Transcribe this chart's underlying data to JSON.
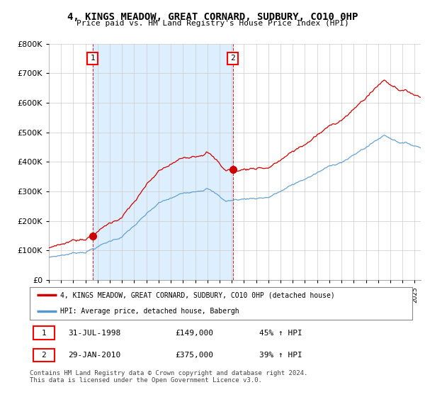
{
  "title": "4, KINGS MEADOW, GREAT CORNARD, SUDBURY, CO10 0HP",
  "subtitle": "Price paid vs. HM Land Registry's House Price Index (HPI)",
  "ylim": [
    0,
    800000
  ],
  "xlim_start": 1995.0,
  "xlim_end": 2025.5,
  "sale1_year": 1998.58,
  "sale1_price": 149000,
  "sale2_year": 2010.08,
  "sale2_price": 375000,
  "legend_line1": "4, KINGS MEADOW, GREAT CORNARD, SUDBURY, CO10 0HP (detached house)",
  "legend_line2": "HPI: Average price, detached house, Babergh",
  "line_color_red": "#cc0000",
  "line_color_blue": "#5599cc",
  "shade_color": "#ddeeff",
  "background_color": "#ffffff",
  "grid_color": "#cccccc"
}
